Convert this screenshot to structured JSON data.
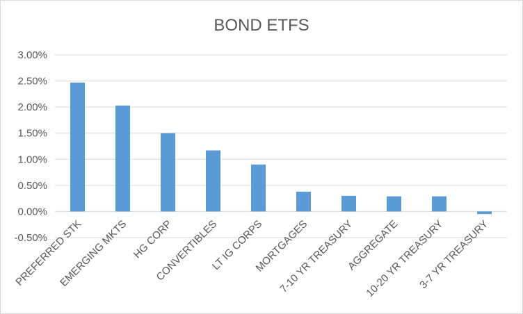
{
  "chart_data": {
    "type": "bar",
    "title": "BOND ETFS",
    "xlabel": "",
    "ylabel": "",
    "categories": [
      "PREFERRED STK",
      "EMERGING MKTS",
      "HG CORP",
      "CONVERTIBLES",
      "LT IG CORPS",
      "MORTGAGES",
      "7-10 YR TREASURY",
      "AGGREGATE",
      "10-20 YR TREASURY",
      "3-7 YR TREASURY"
    ],
    "values": [
      2.47,
      2.03,
      1.5,
      1.17,
      0.9,
      0.38,
      0.3,
      0.29,
      0.29,
      -0.05
    ],
    "value_unit": "%",
    "ylim": [
      -0.5,
      3.0
    ],
    "yticks": [
      "-0.50%",
      "0.00%",
      "0.50%",
      "1.00%",
      "1.50%",
      "2.00%",
      "2.50%",
      "3.00%"
    ],
    "ytick_values": [
      -0.5,
      0.0,
      0.5,
      1.0,
      1.5,
      2.0,
      2.5,
      3.0
    ],
    "grid": true,
    "legend": "none",
    "colors": {
      "bar": "#5b9bd5",
      "grid": "#d9d9d9",
      "text": "#595959"
    }
  }
}
